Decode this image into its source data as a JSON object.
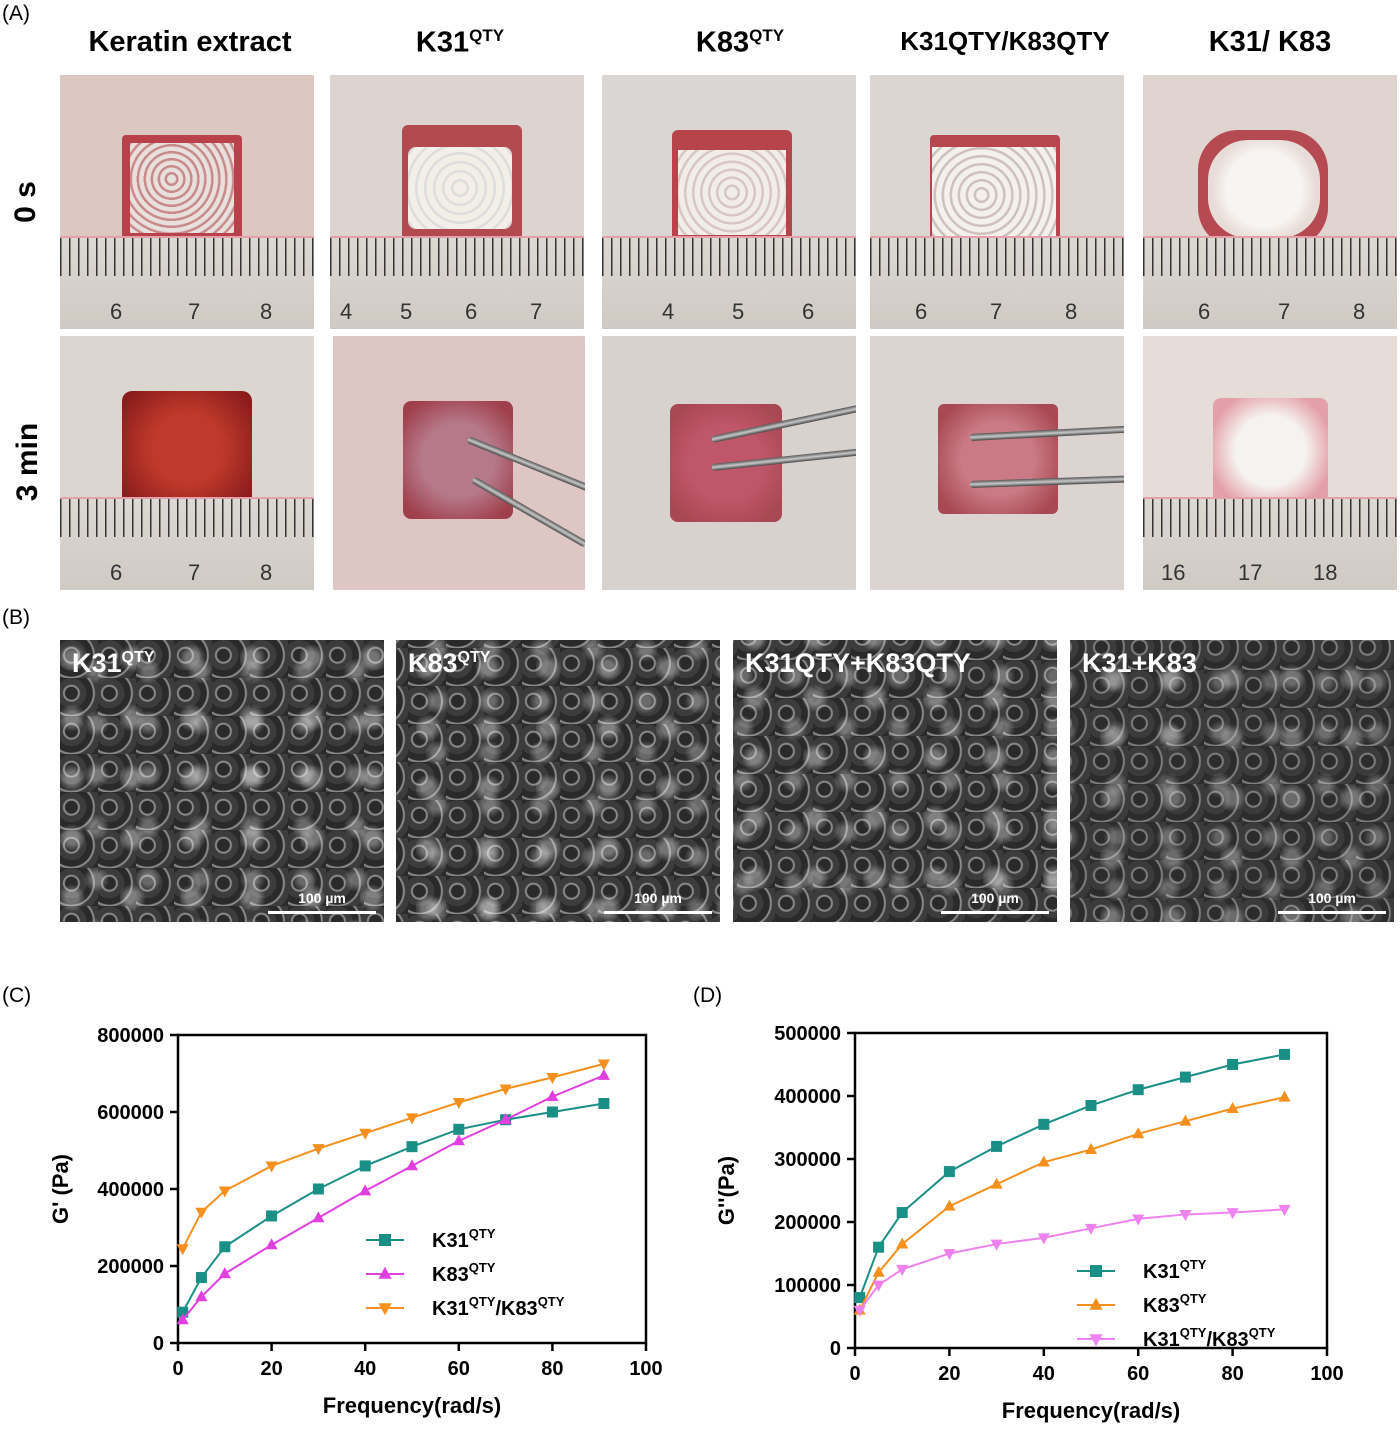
{
  "panel_a": {
    "label": "(A)",
    "columns": [
      {
        "name": "Keratin extract",
        "sup": ""
      },
      {
        "name": "K31",
        "sup": "QTY"
      },
      {
        "name": "K83",
        "sup": "QTY"
      },
      {
        "name": "K31QTY/K83QTY",
        "sup": ""
      },
      {
        "name": "K31/ K83",
        "sup": ""
      }
    ],
    "rows": [
      "0 s",
      "3 min"
    ],
    "rulers": [
      [
        "6",
        "7",
        "8"
      ],
      [
        "4",
        "5",
        "6",
        "7"
      ],
      [
        "4",
        "5",
        "6"
      ],
      [
        "6",
        "7",
        "8"
      ],
      [
        "6",
        "7",
        "8"
      ],
      [
        "6",
        "7",
        "8"
      ],
      [],
      [],
      [],
      [
        "16",
        "17",
        "18"
      ]
    ]
  },
  "panel_b": {
    "label": "(B)",
    "images": [
      {
        "label": "K31",
        "sup": "QTY",
        "scale": "100 µm"
      },
      {
        "label": "K83",
        "sup": "QTY",
        "scale": "100 µm"
      },
      {
        "label": "K31QTY+K83QTY",
        "sup": "",
        "scale": "100 µm"
      },
      {
        "label": "K31+K83",
        "sup": "",
        "scale": "100 µm"
      }
    ]
  },
  "chart_data": [
    {
      "panel": "(C)",
      "type": "line",
      "xlabel": "Frequency(rad/s)",
      "ylabel": "G' (Pa)",
      "xlim": [
        0,
        100
      ],
      "ylim": [
        0,
        800000
      ],
      "xticks": [
        0,
        20,
        40,
        60,
        80,
        100
      ],
      "yticks": [
        0,
        200000,
        400000,
        600000,
        800000
      ],
      "legend_position": "center-right",
      "series": [
        {
          "name": "K31QTY",
          "color": "#1a8f86",
          "marker": "square",
          "x": [
            1,
            5,
            10,
            20,
            30,
            40,
            50,
            60,
            70,
            80,
            91
          ],
          "y": [
            80000,
            170000,
            250000,
            330000,
            400000,
            460000,
            510000,
            555000,
            580000,
            600000,
            622000
          ]
        },
        {
          "name": "K83QTY",
          "color": "#e040e0",
          "marker": "triangle-up",
          "x": [
            1,
            5,
            10,
            20,
            30,
            40,
            50,
            60,
            70,
            80,
            91
          ],
          "y": [
            60000,
            120000,
            180000,
            255000,
            325000,
            395000,
            460000,
            525000,
            580000,
            640000,
            695000
          ]
        },
        {
          "name": "K31QTY/K83QTY",
          "color": "#f5901e",
          "marker": "triangle-down",
          "x": [
            1,
            5,
            10,
            20,
            30,
            40,
            50,
            60,
            70,
            80,
            91
          ],
          "y": [
            245000,
            340000,
            395000,
            460000,
            505000,
            545000,
            585000,
            625000,
            660000,
            690000,
            725000
          ]
        }
      ]
    },
    {
      "panel": "(D)",
      "type": "line",
      "xlabel": "Frequency(rad/s)",
      "ylabel": "G''(Pa)",
      "xlim": [
        0,
        100
      ],
      "ylim": [
        0,
        500000
      ],
      "xticks": [
        0,
        20,
        40,
        60,
        80,
        100
      ],
      "yticks": [
        0,
        100000,
        200000,
        300000,
        400000,
        500000
      ],
      "legend_position": "bottom-right",
      "series": [
        {
          "name": "K31QTY",
          "color": "#1a8f86",
          "marker": "square",
          "x": [
            1,
            5,
            10,
            20,
            30,
            40,
            50,
            60,
            70,
            80,
            91
          ],
          "y": [
            80000,
            160000,
            215000,
            280000,
            320000,
            355000,
            385000,
            410000,
            430000,
            450000,
            466000
          ]
        },
        {
          "name": "K83QTY",
          "color": "#f5901e",
          "marker": "triangle-up",
          "x": [
            1,
            5,
            10,
            20,
            30,
            40,
            50,
            60,
            70,
            80,
            91
          ],
          "y": [
            60000,
            120000,
            165000,
            225000,
            260000,
            295000,
            315000,
            340000,
            360000,
            380000,
            398000
          ]
        },
        {
          "name": "K31QTY/K83QTY",
          "color": "#ee82ee",
          "marker": "triangle-down",
          "x": [
            1,
            5,
            10,
            20,
            30,
            40,
            50,
            60,
            70,
            80,
            91
          ],
          "y": [
            60000,
            100000,
            125000,
            150000,
            165000,
            175000,
            190000,
            205000,
            212000,
            215000,
            220000
          ]
        }
      ]
    }
  ]
}
